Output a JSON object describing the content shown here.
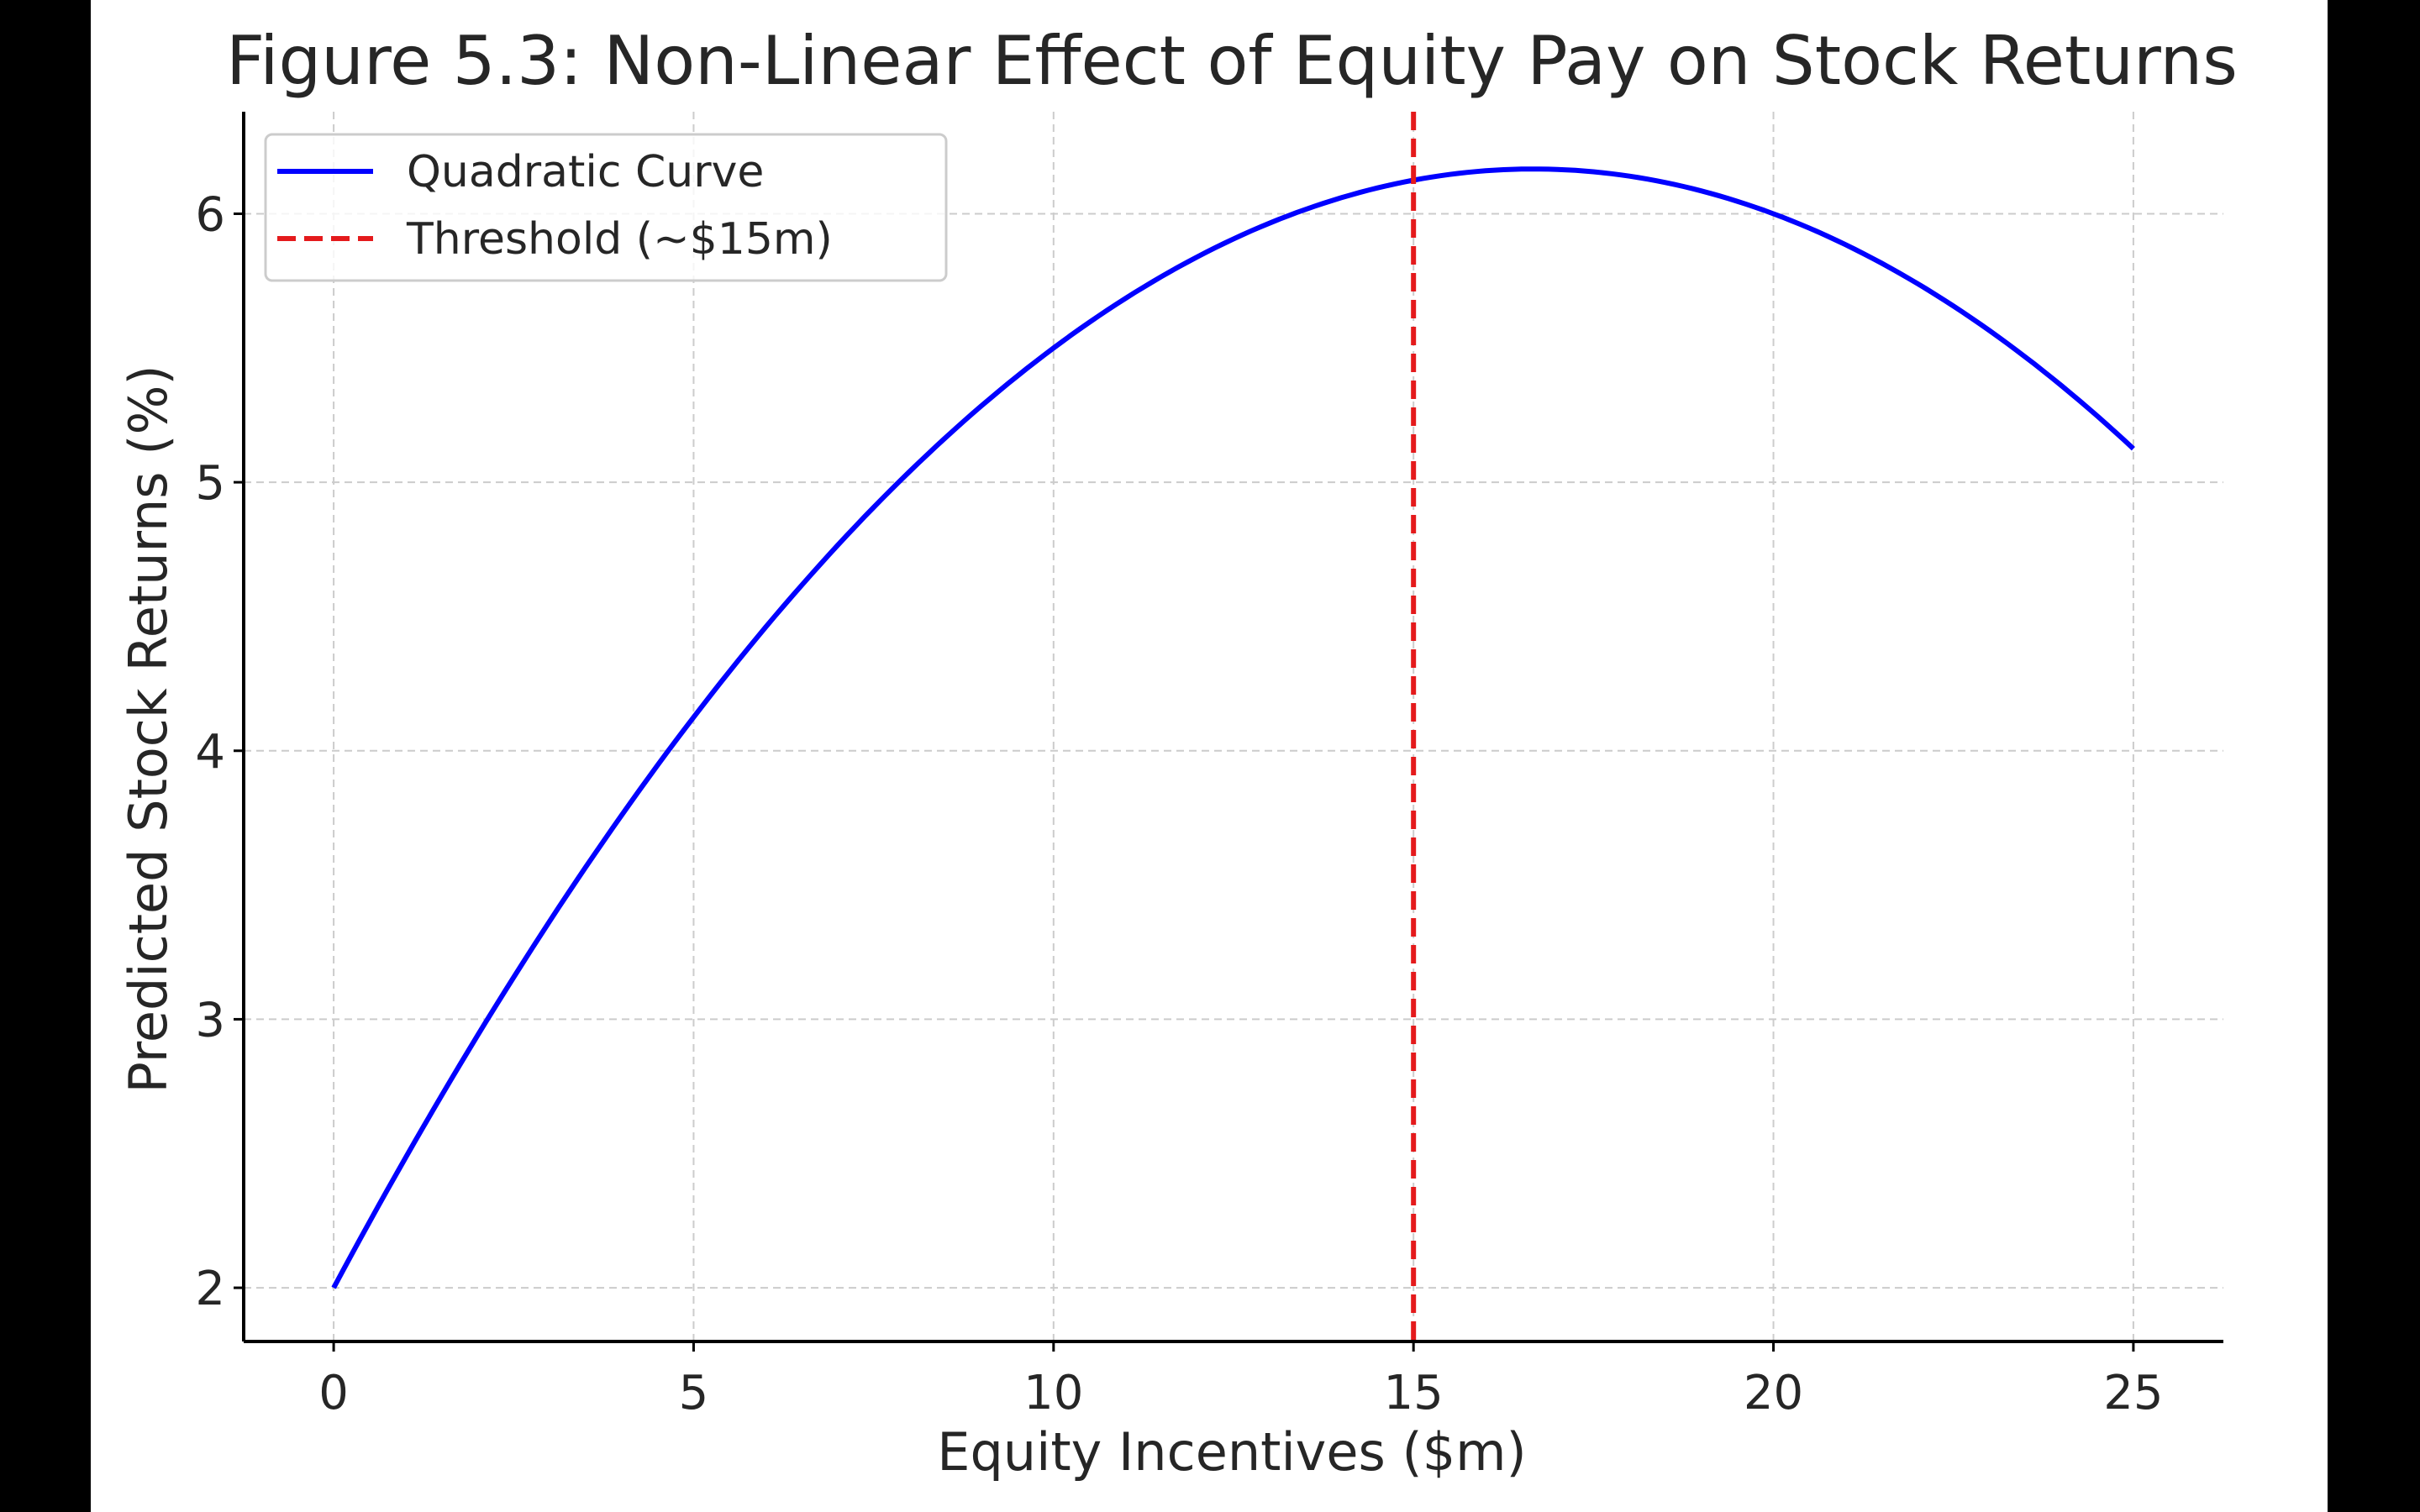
{
  "chart_data": {
    "type": "line",
    "title": "Figure 5.3: Non-Linear Effect of Equity Pay on Stock Returns",
    "xlabel": "Equity Incentives ($m)",
    "ylabel": "Predicted Stock Returns (%)",
    "xlim": [
      -1.25,
      26.25
    ],
    "ylim": [
      1.8,
      6.38
    ],
    "xticks": [
      0,
      5,
      10,
      15,
      20,
      25
    ],
    "yticks": [
      2,
      3,
      4,
      5,
      6
    ],
    "grid": true,
    "legend_position": "top-left",
    "series": [
      {
        "name": "Quadratic Curve",
        "color": "#0000ff",
        "style": "solid",
        "x": [
          0,
          2.5,
          5,
          7.5,
          10,
          12.5,
          15,
          16.67,
          17.5,
          20,
          22.5,
          25
        ],
        "y": [
          2.0,
          3.1,
          4.0,
          4.8,
          5.5,
          5.9,
          6.12,
          6.17,
          6.16,
          6.0,
          5.65,
          5.12
        ]
      }
    ],
    "annotations": [
      {
        "name": "Threshold (~$15m)",
        "type": "vline",
        "x": 15,
        "color": "#e41a1c",
        "style": "dashed"
      }
    ]
  }
}
